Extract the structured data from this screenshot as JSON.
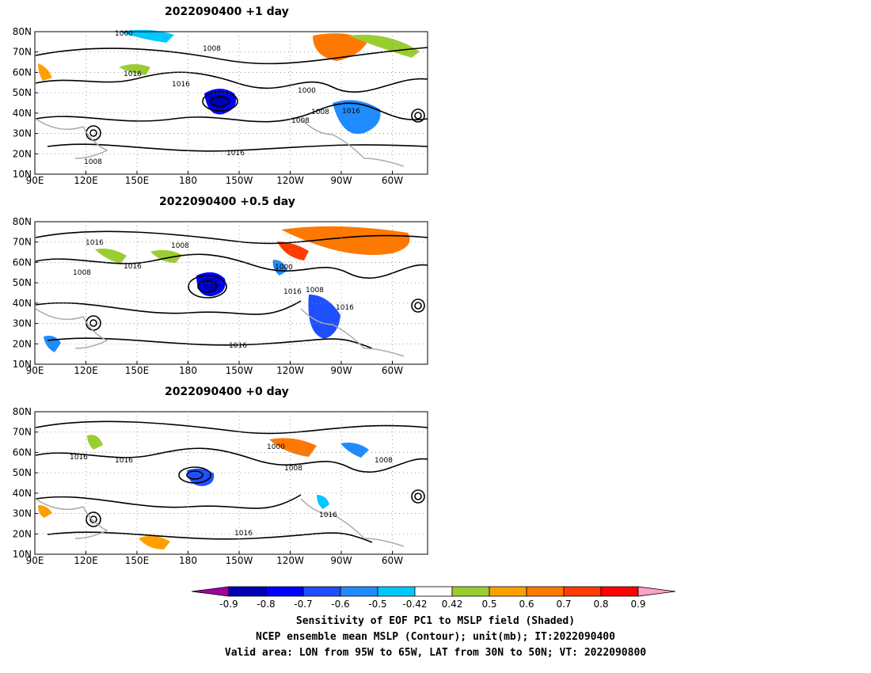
{
  "panels": [
    {
      "title": "2022090400  +1 day",
      "contour_labels": [
        "1000",
        "1008",
        "1016",
        "1016",
        "1000",
        "1008",
        "1008",
        "1016",
        "1016",
        "1008"
      ]
    },
    {
      "title": "2022090400  +0.5 day",
      "contour_labels": [
        "1016",
        "1008",
        "1008",
        "1016",
        "1000",
        "1016",
        "1008",
        "1016",
        "1016"
      ]
    },
    {
      "title": "2022090400  +0 day",
      "contour_labels": [
        "1016",
        "1016",
        "1000",
        "1008",
        "1008",
        "1016",
        "1016"
      ]
    }
  ],
  "lat_labels": [
    "80N",
    "70N",
    "60N",
    "50N",
    "40N",
    "30N",
    "20N",
    "10N"
  ],
  "lon_labels": [
    "90E",
    "120E",
    "150E",
    "180",
    "150W",
    "120W",
    "90W",
    "60W"
  ],
  "colorbar": {
    "ticks": [
      "-0.9",
      "-0.8",
      "-0.7",
      "-0.6",
      "-0.5",
      "-0.42",
      "0.42",
      "0.5",
      "0.6",
      "0.7",
      "0.8",
      "0.9"
    ],
    "colors": [
      "#0000b4",
      "#0000ff",
      "#1e50ff",
      "#1e8cff",
      "#00c8ff",
      "#ffffff",
      "#9acd32",
      "#ffa000",
      "#ff7800",
      "#ff3c00",
      "#ff0000"
    ],
    "low_extend_color": "#a000a0",
    "high_extend_color": "#ffa0c8"
  },
  "caption": {
    "line1": "Sensitivity of EOF PC1 to MSLP field (Shaded)",
    "line2": "NCEP ensemble mean MSLP (Contour); unit(mb); IT:2022090400",
    "line3": "Valid area: LON from 95W to 65W, LAT from 30N to 50N; VT: 2022090800"
  }
}
